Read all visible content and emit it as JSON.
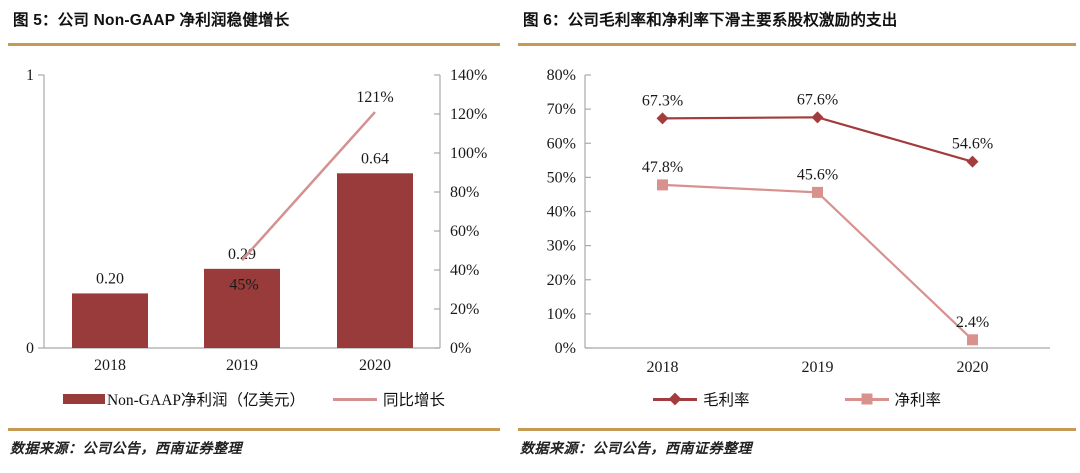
{
  "colors": {
    "gold": "#C69A55",
    "bar_red": "#993B3B",
    "gross_red": "#A33C3C",
    "pink": "#D59090",
    "net_pink": "#D9918E",
    "axis_gray": "#A9A9A9",
    "text": "#1A1A1A"
  },
  "figures": [
    {
      "title": "图 5：公司 Non-GAAP 净利润稳健增长",
      "source": "数据来源：公司公告，西南证券整理"
    },
    {
      "title": "图 6：公司毛利率和净利率下滑主要系股权激励的支出",
      "source": "数据来源：公司公告，西南证券整理"
    }
  ],
  "chart_data": [
    {
      "type": "bar",
      "title": "公司 Non-GAAP 净利润稳健增长",
      "categories": [
        "2018",
        "2019",
        "2020"
      ],
      "series": [
        {
          "name": "Non-GAAP净利润（亿美元）",
          "type": "bar",
          "axis": "left",
          "values": [
            0.2,
            0.29,
            0.64
          ],
          "labels": [
            "0.20",
            "0.29",
            "0.64"
          ],
          "color_key": "bar_red"
        },
        {
          "name": "同比增长",
          "type": "line",
          "axis": "right",
          "values": [
            null,
            45,
            121
          ],
          "labels": [
            null,
            "45%",
            "121%"
          ],
          "label_side": [
            null,
            "below",
            "above"
          ],
          "color_key": "pink"
        }
      ],
      "left_axis": {
        "min": 0,
        "max": 1,
        "tick_values": [
          0,
          1
        ],
        "tick_labels": [
          "0",
          "1"
        ]
      },
      "right_axis": {
        "min": 0,
        "max": 140,
        "step": 20,
        "tick_labels": [
          "0%",
          "20%",
          "40%",
          "60%",
          "80%",
          "100%",
          "120%",
          "140%"
        ]
      },
      "grid": false,
      "legend_position": "bottom"
    },
    {
      "type": "line",
      "title": "公司毛利率和净利率下滑主要系股权激励的支出",
      "categories": [
        "2018",
        "2019",
        "2020"
      ],
      "series": [
        {
          "name": "毛利率",
          "marker": "diamond",
          "values": [
            67.3,
            67.6,
            54.6
          ],
          "labels": [
            "67.3%",
            "67.6%",
            "54.6%"
          ],
          "color_key": "gross_red"
        },
        {
          "name": "净利率",
          "marker": "square",
          "values": [
            47.8,
            45.6,
            2.4
          ],
          "labels": [
            "47.8%",
            "45.6%",
            "2.4%"
          ],
          "color_key": "net_pink"
        }
      ],
      "y_axis": {
        "min": 0,
        "max": 80,
        "step": 10,
        "tick_labels": [
          "0%",
          "10%",
          "20%",
          "30%",
          "40%",
          "50%",
          "60%",
          "70%",
          "80%"
        ]
      },
      "grid": false,
      "legend_position": "bottom"
    }
  ]
}
